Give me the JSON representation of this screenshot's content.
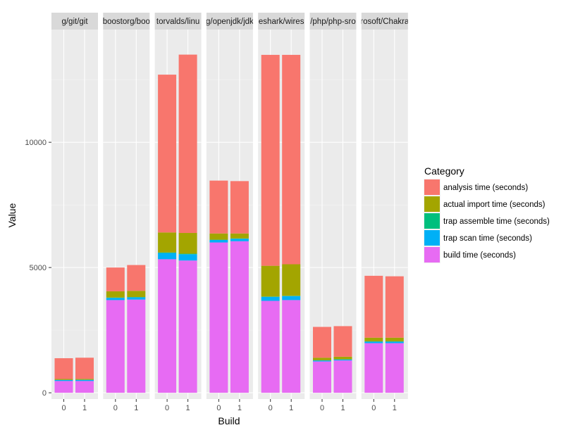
{
  "chart_data": {
    "type": "bar",
    "stacked": true,
    "faceted": true,
    "xlabel": "Build",
    "ylabel": "Value",
    "ylim": [
      -250,
      14500
    ],
    "yticks": [
      0,
      5000,
      10000
    ],
    "ytick_labels": [
      "0",
      "5000",
      "10000"
    ],
    "categories": [
      "0",
      "1"
    ],
    "grid": true,
    "legend": {
      "title": "Category",
      "position": "right",
      "entries": [
        {
          "label": "analysis time (seconds)",
          "color": "#F8766D"
        },
        {
          "label": "actual import time (seconds)",
          "color": "#A3A500"
        },
        {
          "label": "trap assemble time (seconds)",
          "color": "#00BF7D"
        },
        {
          "label": "trap scan time (seconds)",
          "color": "#00B0F6"
        },
        {
          "label": "build time (seconds)",
          "color": "#E76BF3"
        }
      ]
    },
    "stack_order_bottom_to_top": [
      "build time (seconds)",
      "trap scan time (seconds)",
      "trap assemble time (seconds)",
      "actual import time (seconds)",
      "analysis time (seconds)"
    ],
    "facets": [
      {
        "label": "g/git/git",
        "bars": [
          {
            "build": "0",
            "build time (seconds)": 470,
            "trap scan time (seconds)": 40,
            "trap assemble time (seconds)": 5,
            "actual import time (seconds)": 35,
            "analysis time (seconds)": 830
          },
          {
            "build": "1",
            "build time (seconds)": 470,
            "trap scan time (seconds)": 45,
            "trap assemble time (seconds)": 5,
            "actual import time (seconds)": 35,
            "analysis time (seconds)": 845
          }
        ]
      },
      {
        "label": "boostorg/boo",
        "bars": [
          {
            "build": "0",
            "build time (seconds)": 3700,
            "trap scan time (seconds)": 90,
            "trap assemble time (seconds)": 10,
            "actual import time (seconds)": 250,
            "analysis time (seconds)": 950
          },
          {
            "build": "1",
            "build time (seconds)": 3720,
            "trap scan time (seconds)": 90,
            "trap assemble time (seconds)": 10,
            "actual import time (seconds)": 250,
            "analysis time (seconds)": 1030
          }
        ]
      },
      {
        "label": "torvalds/linu",
        "bars": [
          {
            "build": "0",
            "build time (seconds)": 5330,
            "trap scan time (seconds)": 250,
            "trap assemble time (seconds)": 20,
            "actual import time (seconds)": 800,
            "analysis time (seconds)": 6300
          },
          {
            "build": "1",
            "build time (seconds)": 5280,
            "trap scan time (seconds)": 250,
            "trap assemble time (seconds)": 20,
            "actual import time (seconds)": 830,
            "analysis time (seconds)": 7120
          }
        ]
      },
      {
        "label": "g/openjdk/jdk",
        "bars": [
          {
            "build": "0",
            "build time (seconds)": 6000,
            "trap scan time (seconds)": 100,
            "trap assemble time (seconds)": 10,
            "actual import time (seconds)": 250,
            "analysis time (seconds)": 2110
          },
          {
            "build": "1",
            "build time (seconds)": 6050,
            "trap scan time (seconds)": 100,
            "trap assemble time (seconds)": 10,
            "actual import time (seconds)": 200,
            "analysis time (seconds)": 2090
          }
        ]
      },
      {
        "label": "eshark/wires",
        "bars": [
          {
            "build": "0",
            "build time (seconds)": 3670,
            "trap scan time (seconds)": 160,
            "trap assemble time (seconds)": 10,
            "actual import time (seconds)": 1230,
            "analysis time (seconds)": 8420
          },
          {
            "build": "1",
            "build time (seconds)": 3700,
            "trap scan time (seconds)": 160,
            "trap assemble time (seconds)": 10,
            "actual import time (seconds)": 1260,
            "analysis time (seconds)": 8360
          }
        ]
      },
      {
        "label": "/php/php-sro",
        "bars": [
          {
            "build": "0",
            "build time (seconds)": 1250,
            "trap scan time (seconds)": 40,
            "trap assemble time (seconds)": 5,
            "actual import time (seconds)": 105,
            "analysis time (seconds)": 1230
          },
          {
            "build": "1",
            "build time (seconds)": 1290,
            "trap scan time (seconds)": 40,
            "trap assemble time (seconds)": 5,
            "actual import time (seconds)": 105,
            "analysis time (seconds)": 1220
          }
        ]
      },
      {
        "label": "rosoft/Chakra",
        "bars": [
          {
            "build": "0",
            "build time (seconds)": 1980,
            "trap scan time (seconds)": 60,
            "trap assemble time (seconds)": 10,
            "actual import time (seconds)": 150,
            "analysis time (seconds)": 2470
          },
          {
            "build": "1",
            "build time (seconds)": 1980,
            "trap scan time (seconds)": 60,
            "trap assemble time (seconds)": 10,
            "actual import time (seconds)": 150,
            "analysis time (seconds)": 2450
          }
        ]
      }
    ]
  }
}
